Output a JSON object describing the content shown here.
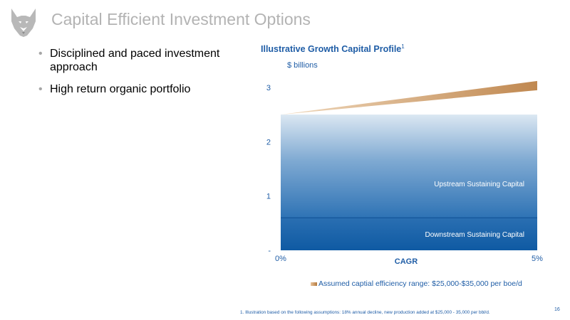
{
  "slide": {
    "title": "Capital Efficient Investment Options",
    "bullets": [
      "Disciplined and paced investment approach",
      "High return organic portfolio"
    ],
    "page_number": "16",
    "footnote": "1.  Illustration based on the following assumptions: 18% annual decline, new production added at  $25,000 - 35,000 per bbl/d."
  },
  "logo": {
    "icon": "husky-dog-logo"
  },
  "colors": {
    "title": "#b3b3b3",
    "accent": "#1f5da6",
    "upstream": "#3a7ab8",
    "downstream": "#155fa6",
    "growth": "#c99866"
  },
  "chart_data": {
    "type": "area",
    "title": "Illustrative Growth Capital Profile",
    "title_superscript": "1",
    "ylabel": "$ billions",
    "xlabel": "CAGR",
    "x_tick_labels": [
      "0%",
      "5%"
    ],
    "y_tick_labels": [
      "-",
      "1",
      "2",
      "3"
    ],
    "y_ticks": [
      0,
      1,
      2,
      3
    ],
    "ylim": [
      0,
      3.3
    ],
    "xlim": [
      0,
      5
    ],
    "grid": false,
    "legend_position": "bottom",
    "series": [
      {
        "name": "Downstream Sustaining Capital",
        "label": "Downstream Sustaining Capital",
        "x": [
          0,
          5
        ],
        "lower": [
          0,
          0
        ],
        "upper": [
          0.6,
          0.6
        ]
      },
      {
        "name": "Upstream Sustaining Capital",
        "label": "Upstream Sustaining Capital",
        "x": [
          0,
          5
        ],
        "lower": [
          0.6,
          0.6
        ],
        "upper": [
          2.5,
          2.5
        ]
      },
      {
        "name": "Assumed captial efficiency range: $25,000-$35,000 per boe/d",
        "x": [
          0,
          5
        ],
        "lower": [
          2.5,
          2.95
        ],
        "upper": [
          2.5,
          3.12
        ]
      }
    ],
    "legend": [
      "Assumed captial efficiency range: $25,000-$35,000 per boe/d"
    ]
  }
}
